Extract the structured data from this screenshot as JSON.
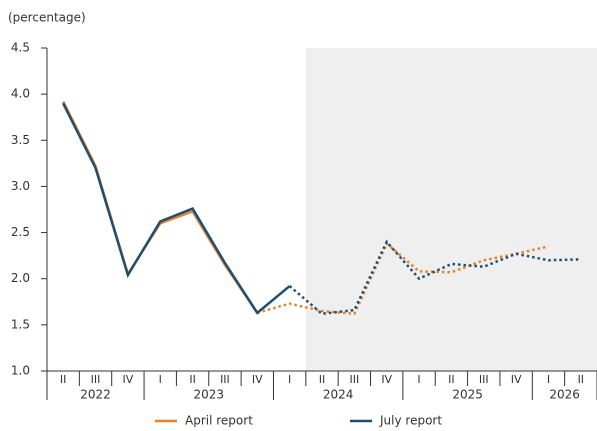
{
  "chart_data": {
    "type": "line",
    "ylabel": "(percentage)",
    "categories": [
      "II",
      "III",
      "IV",
      "I",
      "II",
      "III",
      "IV",
      "I",
      "II",
      "III",
      "IV",
      "I",
      "II",
      "III",
      "IV",
      "I",
      "II"
    ],
    "groups": [
      {
        "label": "2022",
        "count": 3
      },
      {
        "label": "2023",
        "count": 4
      },
      {
        "label": "2024",
        "count": 4
      },
      {
        "label": "2025",
        "count": 4
      },
      {
        "label": "2026",
        "count": 2
      }
    ],
    "shaded_from": 8,
    "series": [
      {
        "name": "April report",
        "color": "#e8802c",
        "dotted_from": 6,
        "values": [
          3.92,
          3.22,
          2.05,
          2.6,
          2.73,
          2.15,
          1.63,
          1.73,
          1.65,
          1.62,
          2.38,
          2.08,
          2.07,
          2.2,
          2.27,
          2.35,
          null
        ]
      },
      {
        "name": "July report",
        "color": "#1d4f75",
        "dotted_from": 7,
        "values": [
          3.9,
          3.2,
          2.04,
          2.62,
          2.76,
          2.17,
          1.63,
          1.92,
          1.62,
          1.66,
          2.4,
          2.0,
          2.16,
          2.13,
          2.27,
          2.2,
          2.21
        ]
      }
    ],
    "ylim": [
      1,
      4.5
    ],
    "yticks": [
      {
        "value": 1,
        "label": "1.0"
      },
      1.5,
      {
        "value": 2,
        "label": "2.0"
      },
      2.5,
      {
        "value": 3,
        "label": "3.0"
      },
      3.5,
      {
        "value": 4,
        "label": "4.0"
      },
      4.5
    ]
  }
}
